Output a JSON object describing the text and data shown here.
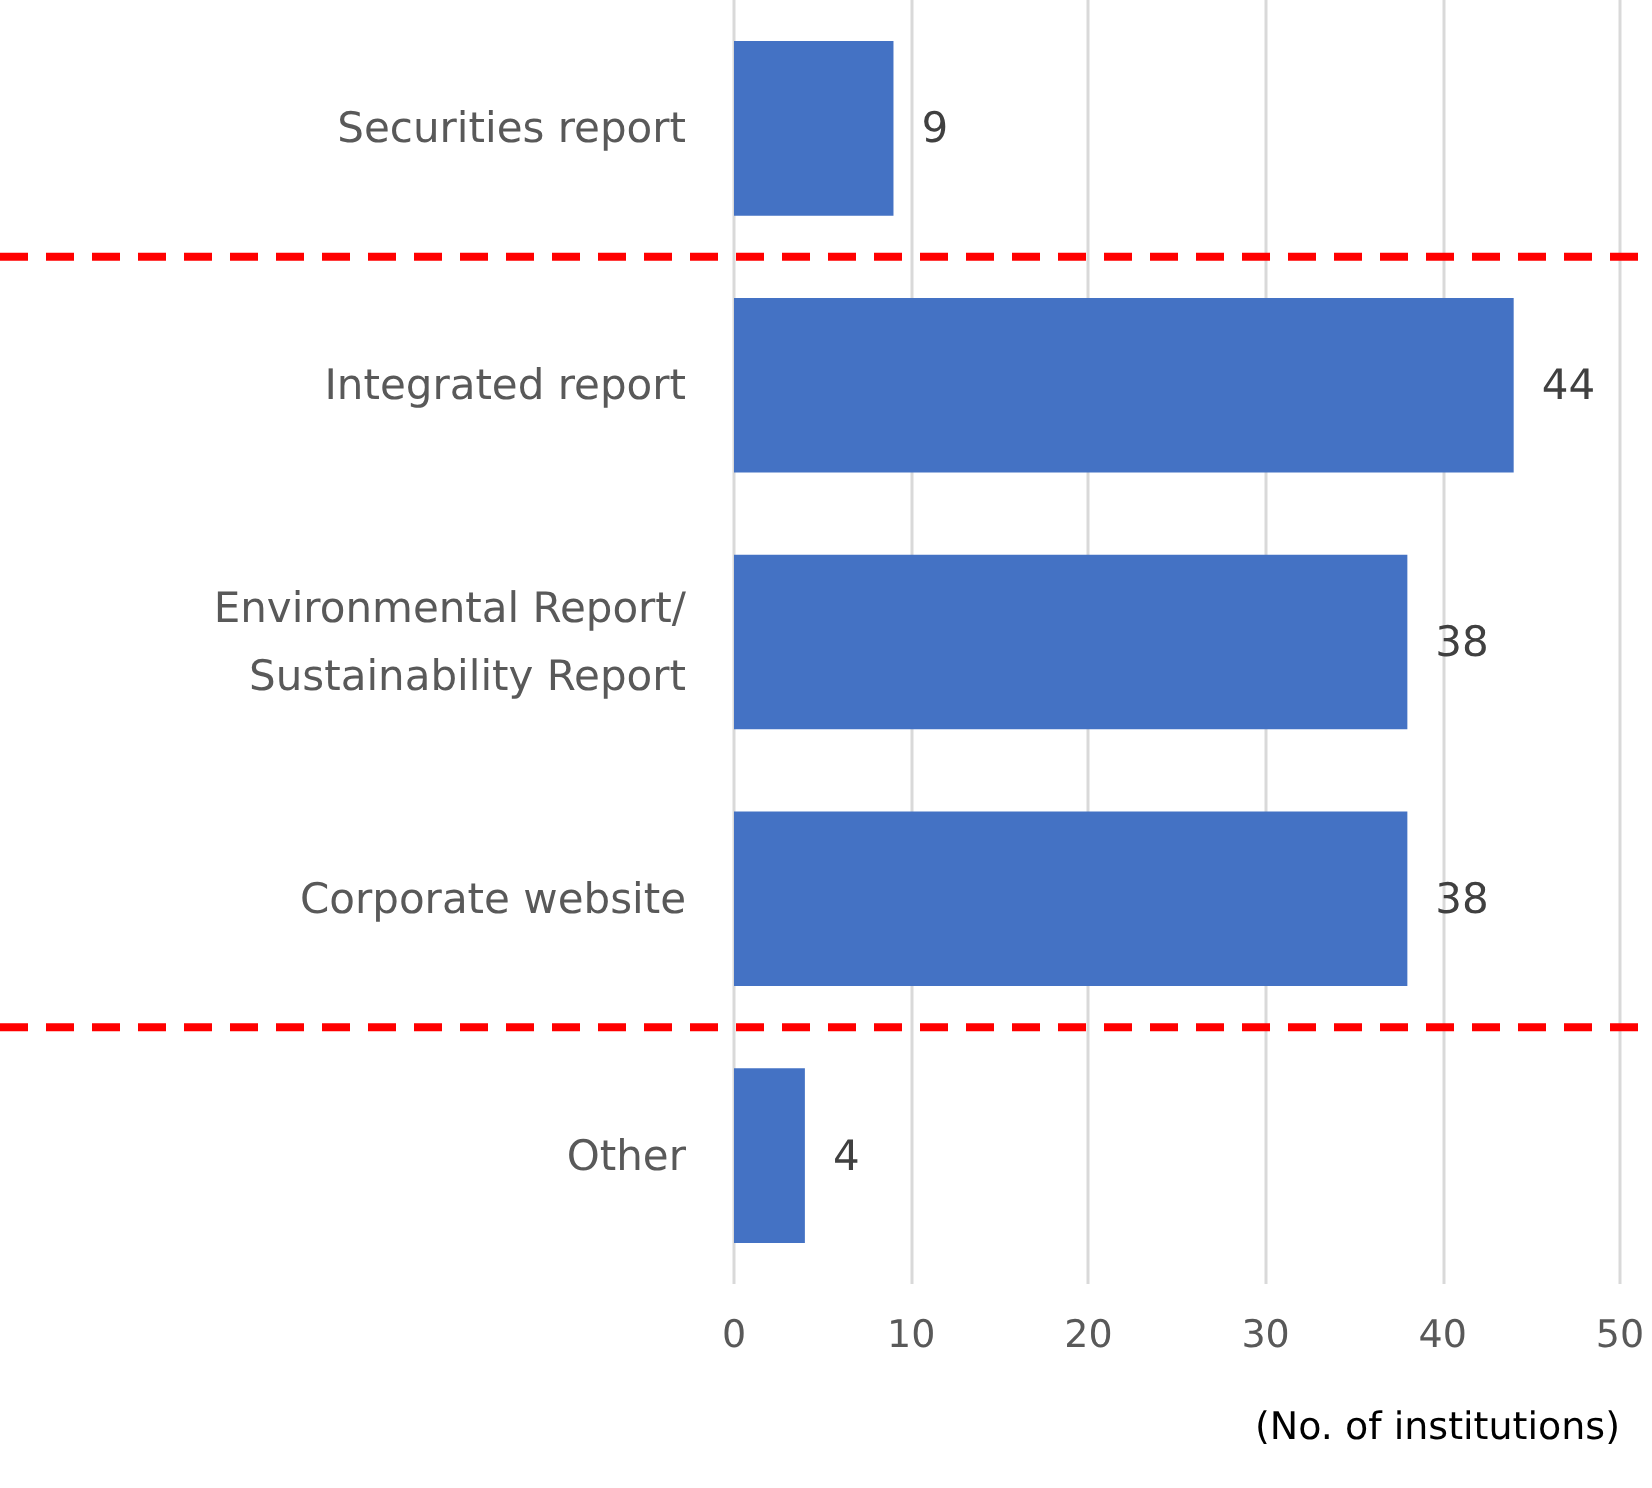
{
  "chart_data": {
    "type": "bar",
    "orientation": "horizontal",
    "categories": [
      "Securities report",
      "Integrated report",
      "Environmental Report/Sustainability Report",
      "Corporate website",
      "Other"
    ],
    "values": [
      9,
      44,
      38,
      38,
      4
    ],
    "color": "#4472c4",
    "data_labels": true,
    "xlim": [
      0,
      50
    ],
    "xticks": [
      0,
      10,
      20,
      30,
      40,
      50
    ],
    "grid": "x",
    "xlabel": "(No. of institutions)"
  }
}
